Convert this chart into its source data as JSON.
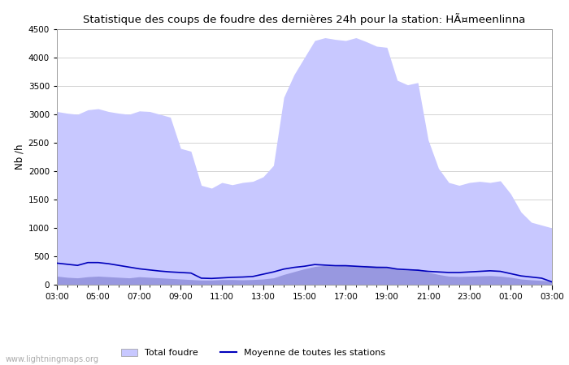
{
  "title": "Statistique des coups de foudre des dernières 24h pour la station: HÃ¤meenlinna",
  "ylabel": "Nb /h",
  "watermark": "www.lightningmaps.org",
  "xlim": [
    0,
    24
  ],
  "ylim": [
    0,
    4500
  ],
  "yticks": [
    0,
    500,
    1000,
    1500,
    2000,
    2500,
    3000,
    3500,
    4000,
    4500
  ],
  "xtick_labels": [
    "03:00",
    "05:00",
    "07:00",
    "09:00",
    "11:00",
    "13:00",
    "15:00",
    "17:00",
    "19:00",
    "21:00",
    "23:00",
    "01:00",
    "03:00"
  ],
  "xtick_positions": [
    0,
    2,
    4,
    6,
    8,
    10,
    12,
    14,
    16,
    18,
    20,
    22,
    24
  ],
  "total_foudre_color": "#c8c8ff",
  "detected_color": "#9898e0",
  "mean_line_color": "#0000bb",
  "background_color": "#ffffff",
  "x": [
    0,
    0.5,
    1,
    1.5,
    2,
    2.5,
    3,
    3.5,
    4,
    4.5,
    5,
    5.5,
    6,
    6.5,
    7,
    7.5,
    8,
    8.5,
    9,
    9.5,
    10,
    10.5,
    11,
    11.5,
    12,
    12.5,
    13,
    13.5,
    14,
    14.5,
    15,
    15.5,
    16,
    16.5,
    17,
    17.5,
    18,
    18.5,
    19,
    19.5,
    20,
    20.5,
    21,
    21.5,
    22,
    22.5,
    23,
    23.5,
    24
  ],
  "total_foudre": [
    3050,
    3020,
    3000,
    3080,
    3100,
    3050,
    3020,
    3000,
    3060,
    3050,
    3000,
    2950,
    2400,
    2350,
    1750,
    1700,
    1800,
    1760,
    1800,
    1820,
    1900,
    2100,
    3300,
    3700,
    4000,
    4300,
    4350,
    4320,
    4300,
    4350,
    4280,
    4200,
    4180,
    3600,
    3520,
    3560,
    2550,
    2050,
    1800,
    1750,
    1800,
    1820,
    1800,
    1830,
    1600,
    1280,
    1100,
    1050,
    1000
  ],
  "detected_foudre": [
    150,
    130,
    120,
    140,
    150,
    140,
    130,
    120,
    140,
    130,
    120,
    110,
    100,
    90,
    80,
    80,
    90,
    90,
    85,
    90,
    100,
    120,
    180,
    230,
    280,
    320,
    340,
    330,
    340,
    330,
    340,
    330,
    320,
    270,
    260,
    280,
    220,
    180,
    150,
    145,
    150,
    155,
    160,
    150,
    130,
    100,
    85,
    75,
    60
  ],
  "mean_line": [
    380,
    360,
    340,
    390,
    390,
    370,
    340,
    310,
    280,
    260,
    240,
    225,
    215,
    205,
    115,
    110,
    120,
    130,
    135,
    145,
    185,
    225,
    275,
    305,
    325,
    355,
    345,
    335,
    335,
    325,
    315,
    305,
    305,
    275,
    265,
    255,
    235,
    225,
    215,
    215,
    225,
    235,
    245,
    235,
    195,
    155,
    135,
    115,
    50
  ]
}
